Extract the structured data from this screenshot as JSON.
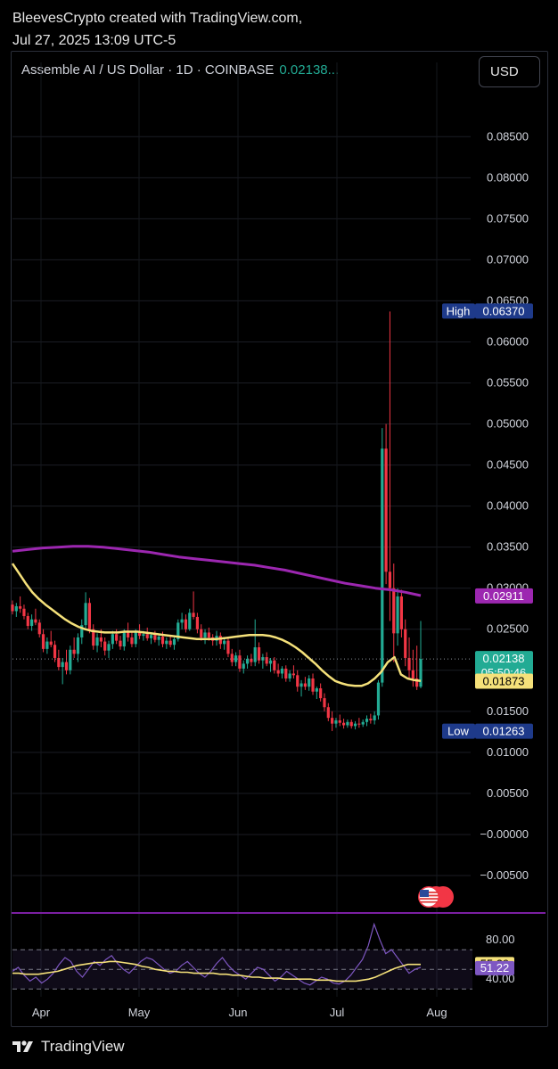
{
  "caption": {
    "line1": "BleevesCrypto created with TradingView.com,",
    "line2": "Jul 27, 2025 13:09 UTC-5"
  },
  "header": {
    "symbol": "Assemble AI / US Dollar · 1D · COINBASE",
    "price": "0.02138...",
    "currency": "USD"
  },
  "colors": {
    "up": "#22ab94",
    "down": "#f23645",
    "ma_short": "#f5e17a",
    "ma_long": "#9c27b0",
    "rsi": "#7e57c2",
    "rsi_ma": "#f5e17a",
    "high_low_tag": "#1e3a8a"
  },
  "footer": {
    "brand": "TradingView",
    "logo_icon": "tradingview-logo-icon"
  },
  "chart_data": {
    "type": "candlestick",
    "x_tick_labels": [
      "Apr",
      "May",
      "Jun",
      "Jul",
      "Aug"
    ],
    "y_ticks": [
      "0.08500",
      "0.08000",
      "0.07500",
      "0.07000",
      "0.06500",
      "0.06000",
      "0.05500",
      "0.05000",
      "0.04500",
      "0.04000",
      "0.03500",
      "0.03000",
      "0.02500",
      "0.02000",
      "0.01500",
      "0.01000",
      "0.00500",
      "−0.00000",
      "−0.00500"
    ],
    "ylim": [
      -0.0075,
      0.0897
    ],
    "labels": {
      "high_tag": "High",
      "high_value": "0.06370",
      "low_tag": "Low",
      "low_value": "0.01263",
      "last_price": "0.02138",
      "countdown": "05:50:46",
      "ma_long_value": "0.02911",
      "ma_short_value": "0.01873"
    },
    "candles_ohlc": [
      [
        0.028,
        0.0285,
        0.0268,
        0.0272
      ],
      [
        0.0272,
        0.0282,
        0.0265,
        0.0278
      ],
      [
        0.0278,
        0.029,
        0.027,
        0.0275
      ],
      [
        0.0275,
        0.028,
        0.0262,
        0.0266
      ],
      [
        0.0266,
        0.027,
        0.025,
        0.0254
      ],
      [
        0.0254,
        0.0268,
        0.0248,
        0.0262
      ],
      [
        0.0262,
        0.0275,
        0.0255,
        0.0258
      ],
      [
        0.0258,
        0.0262,
        0.024,
        0.0244
      ],
      [
        0.0244,
        0.025,
        0.0222,
        0.0226
      ],
      [
        0.0226,
        0.024,
        0.022,
        0.0235
      ],
      [
        0.0235,
        0.0248,
        0.0228,
        0.0231
      ],
      [
        0.0231,
        0.0236,
        0.021,
        0.0215
      ],
      [
        0.0215,
        0.0225,
        0.02,
        0.0204
      ],
      [
        0.0204,
        0.0215,
        0.0183,
        0.021
      ],
      [
        0.021,
        0.0225,
        0.0195,
        0.02
      ],
      [
        0.02,
        0.023,
        0.0195,
        0.0225
      ],
      [
        0.0225,
        0.024,
        0.0215,
        0.022
      ],
      [
        0.022,
        0.0245,
        0.021,
        0.024
      ],
      [
        0.024,
        0.0262,
        0.0232,
        0.0255
      ],
      [
        0.0255,
        0.0295,
        0.025,
        0.0282
      ],
      [
        0.0282,
        0.0288,
        0.0245,
        0.025
      ],
      [
        0.025,
        0.0256,
        0.0225,
        0.023
      ],
      [
        0.023,
        0.0245,
        0.0222,
        0.024
      ],
      [
        0.024,
        0.025,
        0.0228,
        0.0235
      ],
      [
        0.0235,
        0.024,
        0.0218,
        0.0224
      ],
      [
        0.0224,
        0.0236,
        0.0215,
        0.0232
      ],
      [
        0.0232,
        0.0248,
        0.0226,
        0.0244
      ],
      [
        0.0244,
        0.025,
        0.0232,
        0.0236
      ],
      [
        0.0236,
        0.0242,
        0.0225,
        0.0229
      ],
      [
        0.0229,
        0.025,
        0.0224,
        0.0246
      ],
      [
        0.0246,
        0.0258,
        0.0235,
        0.024
      ],
      [
        0.024,
        0.0246,
        0.0228,
        0.0232
      ],
      [
        0.0232,
        0.025,
        0.0228,
        0.0247
      ],
      [
        0.0247,
        0.0256,
        0.0238,
        0.0242
      ],
      [
        0.0242,
        0.0248,
        0.0236,
        0.0244
      ],
      [
        0.0244,
        0.0252,
        0.0236,
        0.0239
      ],
      [
        0.0239,
        0.0246,
        0.0232,
        0.0243
      ],
      [
        0.0243,
        0.0248,
        0.0234,
        0.0237
      ],
      [
        0.0237,
        0.0244,
        0.023,
        0.0241
      ],
      [
        0.0241,
        0.0247,
        0.0228,
        0.0232
      ],
      [
        0.0232,
        0.024,
        0.0226,
        0.0236
      ],
      [
        0.0236,
        0.0242,
        0.0228,
        0.0231
      ],
      [
        0.0231,
        0.024,
        0.0225,
        0.0238
      ],
      [
        0.0238,
        0.0262,
        0.0235,
        0.0258
      ],
      [
        0.0258,
        0.027,
        0.025,
        0.0262
      ],
      [
        0.0262,
        0.0268,
        0.0246,
        0.025
      ],
      [
        0.025,
        0.0275,
        0.0248,
        0.027
      ],
      [
        0.027,
        0.0296,
        0.0262,
        0.0265
      ],
      [
        0.0265,
        0.027,
        0.0245,
        0.025
      ],
      [
        0.025,
        0.0256,
        0.0236,
        0.024
      ],
      [
        0.024,
        0.025,
        0.0232,
        0.0246
      ],
      [
        0.0246,
        0.0252,
        0.0236,
        0.024
      ],
      [
        0.024,
        0.0244,
        0.023,
        0.0236
      ],
      [
        0.0236,
        0.0248,
        0.023,
        0.0242
      ],
      [
        0.0242,
        0.0246,
        0.0226,
        0.0232
      ],
      [
        0.0232,
        0.024,
        0.0225,
        0.0236
      ],
      [
        0.0236,
        0.024,
        0.0216,
        0.022
      ],
      [
        0.022,
        0.0226,
        0.0205,
        0.021
      ],
      [
        0.021,
        0.0222,
        0.0205,
        0.0218
      ],
      [
        0.0218,
        0.0225,
        0.0198,
        0.0202
      ],
      [
        0.0202,
        0.0212,
        0.0196,
        0.0208
      ],
      [
        0.0208,
        0.0218,
        0.0202,
        0.0214
      ],
      [
        0.0214,
        0.022,
        0.0205,
        0.021
      ],
      [
        0.021,
        0.0262,
        0.0205,
        0.0228
      ],
      [
        0.0228,
        0.0234,
        0.0208,
        0.0212
      ],
      [
        0.0212,
        0.022,
        0.0202,
        0.0216
      ],
      [
        0.0216,
        0.0222,
        0.0205,
        0.0208
      ],
      [
        0.0208,
        0.0215,
        0.0198,
        0.0212
      ],
      [
        0.0212,
        0.0216,
        0.0196,
        0.02
      ],
      [
        0.02,
        0.0208,
        0.0192,
        0.0196
      ],
      [
        0.0196,
        0.0205,
        0.019,
        0.0202
      ],
      [
        0.0202,
        0.0206,
        0.0186,
        0.019
      ],
      [
        0.019,
        0.02,
        0.0186,
        0.0196
      ],
      [
        0.0196,
        0.0206,
        0.019,
        0.0194
      ],
      [
        0.0194,
        0.02,
        0.0174,
        0.018
      ],
      [
        0.018,
        0.0188,
        0.0168,
        0.0184
      ],
      [
        0.0184,
        0.0192,
        0.0176,
        0.018
      ],
      [
        0.018,
        0.0194,
        0.0175,
        0.019
      ],
      [
        0.019,
        0.0196,
        0.017,
        0.0174
      ],
      [
        0.0174,
        0.018,
        0.0165,
        0.0178
      ],
      [
        0.0178,
        0.0184,
        0.0162,
        0.0166
      ],
      [
        0.0166,
        0.0172,
        0.015,
        0.0155
      ],
      [
        0.0155,
        0.016,
        0.0138,
        0.0142
      ],
      [
        0.0142,
        0.015,
        0.0126,
        0.0135
      ],
      [
        0.0135,
        0.0142,
        0.013,
        0.0139
      ],
      [
        0.0139,
        0.0146,
        0.0132,
        0.0136
      ],
      [
        0.0136,
        0.0141,
        0.0129,
        0.0133
      ],
      [
        0.0133,
        0.014,
        0.013,
        0.0137
      ],
      [
        0.0137,
        0.014,
        0.0129,
        0.0132
      ],
      [
        0.0132,
        0.0138,
        0.0128,
        0.0135
      ],
      [
        0.0135,
        0.0142,
        0.013,
        0.0134
      ],
      [
        0.0134,
        0.014,
        0.0131,
        0.0137
      ],
      [
        0.0137,
        0.0145,
        0.0132,
        0.0141
      ],
      [
        0.0141,
        0.0147,
        0.0135,
        0.0139
      ],
      [
        0.0139,
        0.015,
        0.0134,
        0.0145
      ],
      [
        0.0145,
        0.0188,
        0.014,
        0.0185
      ],
      [
        0.0185,
        0.0495,
        0.018,
        0.047
      ],
      [
        0.047,
        0.05,
        0.0305,
        0.032
      ],
      [
        0.032,
        0.0637,
        0.026,
        0.03
      ],
      [
        0.03,
        0.033,
        0.021,
        0.0245
      ],
      [
        0.0245,
        0.03,
        0.023,
        0.029
      ],
      [
        0.029,
        0.0298,
        0.024,
        0.025
      ],
      [
        0.025,
        0.0262,
        0.0205,
        0.0215
      ],
      [
        0.0215,
        0.024,
        0.019,
        0.02
      ],
      [
        0.02,
        0.0225,
        0.018,
        0.019
      ],
      [
        0.019,
        0.023,
        0.0176,
        0.018
      ],
      [
        0.018,
        0.026,
        0.0178,
        0.02138
      ]
    ],
    "ma_short": [
      0.033,
      0.0318,
      0.0306,
      0.0295,
      0.0287,
      0.028,
      0.0274,
      0.0268,
      0.0262,
      0.0257,
      0.0253,
      0.025,
      0.0248,
      0.0247,
      0.0246,
      0.0246,
      0.0246,
      0.0247,
      0.0247,
      0.0247,
      0.0246,
      0.0245,
      0.0244,
      0.0243,
      0.0242,
      0.0241,
      0.024,
      0.0239,
      0.0238,
      0.0238,
      0.0238,
      0.0238,
      0.0239,
      0.024,
      0.0241,
      0.0242,
      0.0243,
      0.0243,
      0.0243,
      0.0242,
      0.024,
      0.0237,
      0.0233,
      0.0228,
      0.0222,
      0.0215,
      0.0208,
      0.02,
      0.0193,
      0.0187,
      0.0184,
      0.0182,
      0.0181,
      0.0181,
      0.0184,
      0.019,
      0.0198,
      0.021,
      0.0216,
      0.0195,
      0.019,
      0.0188,
      0.0187
    ],
    "ma_long": [
      0.0345,
      0.0347,
      0.0349,
      0.035,
      0.0351,
      0.0351,
      0.035,
      0.0348,
      0.0346,
      0.0344,
      0.0341,
      0.0338,
      0.0336,
      0.0334,
      0.0332,
      0.033,
      0.0328,
      0.0325,
      0.0322,
      0.0318,
      0.0314,
      0.031,
      0.0306,
      0.0303,
      0.03,
      0.0298,
      0.0295,
      0.0291
    ],
    "rsi": {
      "ticks": [
        "80.00",
        "40.00"
      ],
      "ylim": [
        22,
        102
      ],
      "rsi_value": "51.22",
      "rsi_ma_value": "55.29",
      "rsi_series": [
        48,
        52,
        44,
        38,
        42,
        36,
        40,
        46,
        55,
        62,
        58,
        48,
        42,
        50,
        58,
        54,
        60,
        64,
        56,
        50,
        46,
        52,
        58,
        62,
        60,
        55,
        50,
        46,
        48,
        54,
        58,
        52,
        46,
        42,
        48,
        56,
        62,
        54,
        48,
        44,
        40,
        46,
        52,
        50,
        44,
        38,
        42,
        48,
        44,
        40,
        36,
        34,
        38,
        42,
        40,
        36,
        35,
        38,
        44,
        52,
        60,
        74,
        96,
        80,
        66,
        70,
        62,
        54,
        46,
        50,
        52
      ],
      "ma_series": [
        46,
        46,
        45,
        45,
        45,
        46,
        47,
        48,
        50,
        52,
        54,
        55,
        56,
        57,
        57,
        58,
        58,
        57,
        56,
        55,
        53,
        52,
        50,
        49,
        48,
        48,
        47,
        47,
        46,
        46,
        46,
        46,
        45,
        45,
        44,
        44,
        43,
        42,
        42,
        41,
        41,
        41,
        40,
        40,
        40,
        40,
        40,
        39,
        39,
        39,
        38,
        38,
        38,
        38,
        39,
        40,
        42,
        45,
        48,
        51,
        53,
        55,
        55,
        55
      ]
    }
  }
}
